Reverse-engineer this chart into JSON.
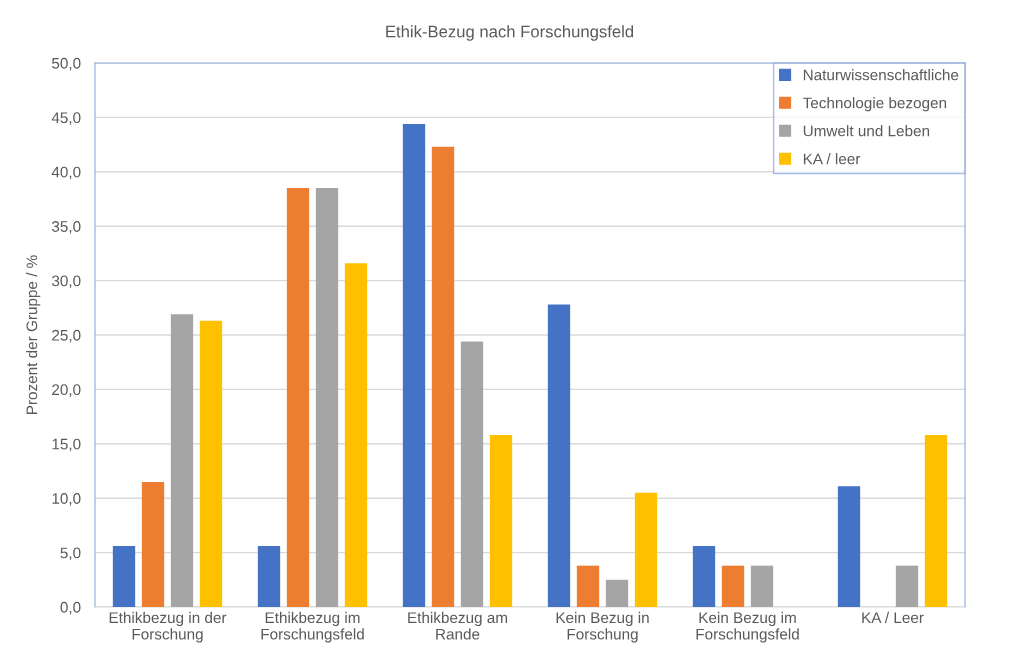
{
  "chart_data": {
    "type": "bar",
    "title": "Ethik-Bezug nach Forschungsfeld",
    "ylabel": "Prozent der Gruppe / %",
    "categories": [
      "Ethikbezug in der\nForschung",
      "Ethikbezug im\nForschungsfeld",
      "Ethikbezug am\nRande",
      "Kein Bezug in\nForschung",
      "Kein Bezug im\nForschungsfeld",
      "KA / Leer"
    ],
    "series": [
      {
        "name": "Naturwissenschaftliche",
        "color": "#4472c4",
        "values": [
          5.6,
          5.6,
          44.4,
          27.8,
          5.6,
          11.1
        ]
      },
      {
        "name": "Technologie bezogen",
        "color": "#ed7d31",
        "values": [
          11.5,
          38.5,
          42.3,
          3.8,
          3.8,
          0
        ]
      },
      {
        "name": "Umwelt und Leben",
        "color": "#a5a5a5",
        "values": [
          26.9,
          38.5,
          24.4,
          2.5,
          3.8,
          3.8
        ]
      },
      {
        "name": "KA / leer",
        "color": "#ffc000",
        "values": [
          26.3,
          31.6,
          15.8,
          10.5,
          0,
          15.8
        ]
      }
    ],
    "ylim": [
      0,
      50
    ],
    "yticks": [
      {
        "value": 0,
        "label": "0,0"
      },
      {
        "value": 5,
        "label": "5,0"
      },
      {
        "value": 10,
        "label": "10,0"
      },
      {
        "value": 15,
        "label": "15,0"
      },
      {
        "value": 20,
        "label": "20,0"
      },
      {
        "value": 25,
        "label": "25,0"
      },
      {
        "value": 30,
        "label": "30,0"
      },
      {
        "value": 35,
        "label": "35,0"
      },
      {
        "value": 40,
        "label": "40,0"
      },
      {
        "value": 45,
        "label": "45,0"
      },
      {
        "value": 50,
        "label": "50,0"
      }
    ],
    "grid": "y",
    "legend": "top right"
  }
}
